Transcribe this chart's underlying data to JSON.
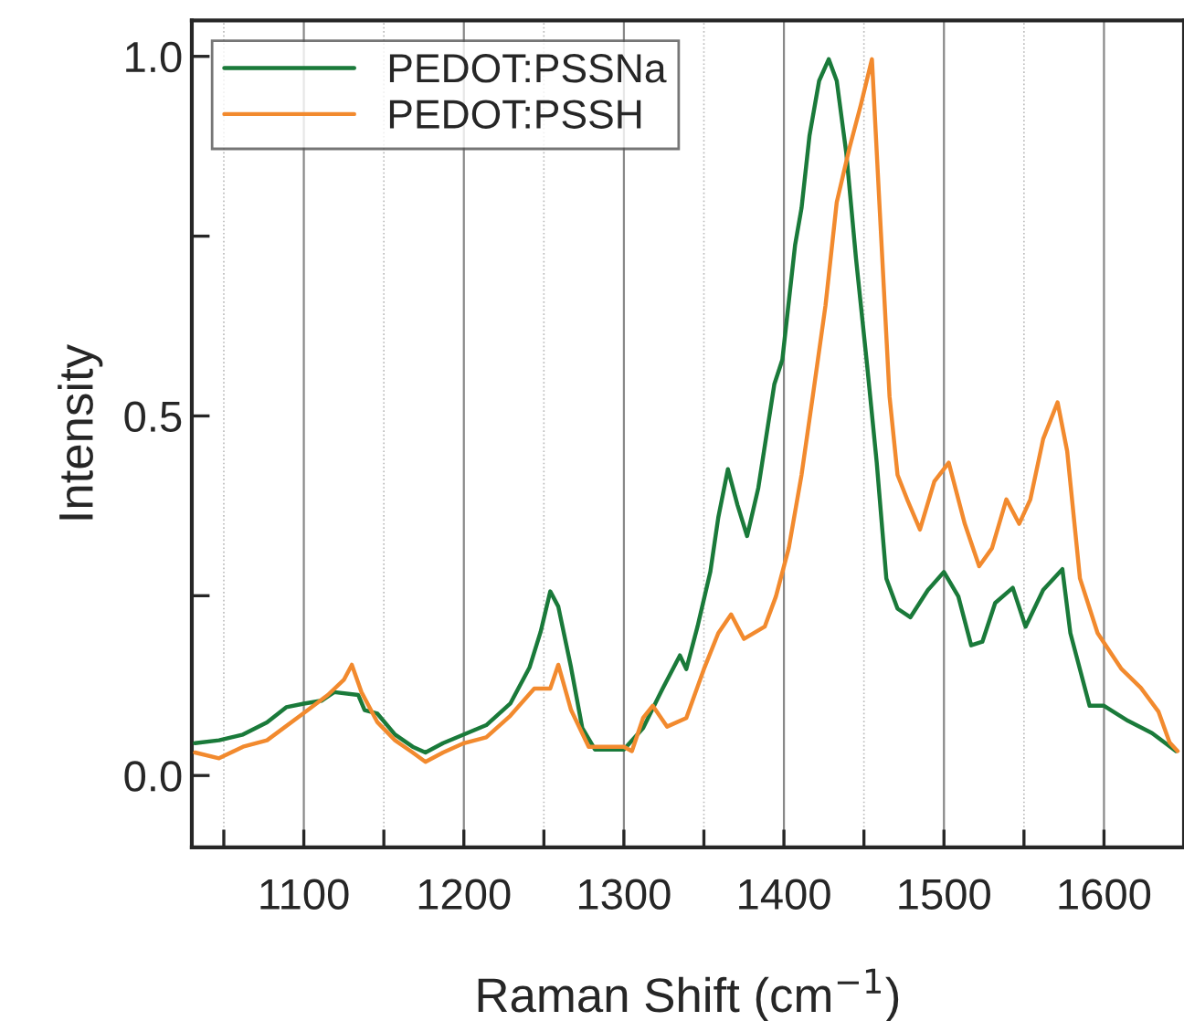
{
  "chart_data": {
    "type": "line",
    "xlabel": "Raman Shift (cm$^{−1}$)",
    "ylabel": "Intensity",
    "series": [
      {
        "name": "PEDOT:PSSNa",
        "color": "#1a7a3a",
        "x": [
          1032,
          1047,
          1062,
          1077,
          1089,
          1100,
          1111,
          1119,
          1134,
          1138,
          1146,
          1157,
          1168,
          1176,
          1187,
          1200,
          1214,
          1229,
          1241,
          1248,
          1254,
          1259,
          1267,
          1274,
          1282,
          1300,
          1312,
          1324,
          1335,
          1339,
          1346,
          1354,
          1359,
          1365,
          1371,
          1377,
          1384,
          1394,
          1399,
          1407,
          1411,
          1416,
          1422,
          1428,
          1433,
          1439,
          1445,
          1452,
          1458,
          1464,
          1471,
          1479,
          1490,
          1500,
          1509,
          1517,
          1524,
          1532,
          1543,
          1551,
          1562,
          1574,
          1579,
          1591,
          1600,
          1615,
          1630,
          1645
        ],
        "values": [
          0.045,
          0.049,
          0.057,
          0.074,
          0.095,
          0.1,
          0.104,
          0.116,
          0.112,
          0.091,
          0.086,
          0.057,
          0.04,
          0.032,
          0.045,
          0.057,
          0.07,
          0.1,
          0.15,
          0.2,
          0.256,
          0.235,
          0.15,
          0.066,
          0.036,
          0.036,
          0.066,
          0.12,
          0.167,
          0.148,
          0.207,
          0.283,
          0.359,
          0.426,
          0.376,
          0.333,
          0.4,
          0.544,
          0.578,
          0.738,
          0.789,
          0.89,
          0.966,
          0.996,
          0.966,
          0.865,
          0.72,
          0.57,
          0.435,
          0.274,
          0.232,
          0.22,
          0.258,
          0.283,
          0.249,
          0.181,
          0.186,
          0.24,
          0.261,
          0.207,
          0.258,
          0.287,
          0.198,
          0.097,
          0.097,
          0.076,
          0.059,
          0.034
        ]
      },
      {
        "name": "PEDOT:PSSH",
        "color": "#f28a2e",
        "x": [
          1032,
          1047,
          1062,
          1077,
          1100,
          1115,
          1125,
          1130,
          1136,
          1146,
          1157,
          1168,
          1176,
          1187,
          1200,
          1214,
          1229,
          1244,
          1254,
          1259,
          1267,
          1278,
          1300,
          1305,
          1312,
          1318,
          1327,
          1339,
          1350,
          1359,
          1367,
          1375,
          1388,
          1395,
          1403,
          1411,
          1418,
          1426,
          1433,
          1441,
          1448,
          1455,
          1460,
          1466,
          1471,
          1477,
          1485,
          1494,
          1503,
          1513,
          1522,
          1530,
          1539,
          1547,
          1554,
          1562,
          1571,
          1577,
          1585,
          1596,
          1611,
          1623,
          1634,
          1641,
          1646
        ],
        "values": [
          0.032,
          0.024,
          0.04,
          0.049,
          0.087,
          0.112,
          0.133,
          0.154,
          0.116,
          0.074,
          0.049,
          0.032,
          0.019,
          0.032,
          0.045,
          0.053,
          0.083,
          0.121,
          0.121,
          0.154,
          0.091,
          0.04,
          0.04,
          0.034,
          0.08,
          0.097,
          0.068,
          0.08,
          0.148,
          0.198,
          0.224,
          0.19,
          0.207,
          0.249,
          0.316,
          0.418,
          0.527,
          0.654,
          0.797,
          0.873,
          0.932,
          0.996,
          0.781,
          0.527,
          0.418,
          0.384,
          0.342,
          0.409,
          0.435,
          0.35,
          0.291,
          0.316,
          0.384,
          0.35,
          0.384,
          0.468,
          0.519,
          0.451,
          0.274,
          0.198,
          0.148,
          0.122,
          0.089,
          0.046,
          0.034
        ]
      }
    ],
    "xlim": [
      1030,
      1650
    ],
    "ylim": [
      -0.1,
      1.05
    ],
    "xticks": [
      {
        "value": 1050,
        "label": null
      },
      1100,
      {
        "value": 1150,
        "label": null
      },
      1200,
      {
        "value": 1250,
        "label": null
      },
      1300,
      {
        "value": 1350,
        "label": null
      },
      1400,
      {
        "value": 1450,
        "label": null
      },
      1500,
      {
        "value": 1550,
        "label": null
      },
      1600
    ],
    "yticks": [
      {
        "value": 0,
        "label": "0.0"
      },
      {
        "value": 0.25,
        "label": null
      },
      {
        "value": 0.5,
        "label": "0.5"
      },
      {
        "value": 0.75,
        "label": null
      },
      {
        "value": 1,
        "label": "1.0"
      }
    ],
    "grid": "x",
    "legend": "top left",
    "line_style": "solid",
    "marker": "none"
  }
}
